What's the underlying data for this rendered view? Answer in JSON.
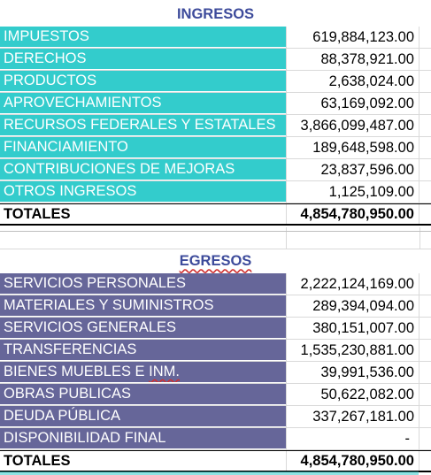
{
  "ingresos": {
    "title": "INGRESOS",
    "color": "#33cccc",
    "rows": [
      {
        "label": "IMPUESTOS",
        "value": "619,884,123.00"
      },
      {
        "label": "DERECHOS",
        "value": "88,378,921.00"
      },
      {
        "label": "PRODUCTOS",
        "value": "2,638,024.00"
      },
      {
        "label": "APROVECHAMIENTOS",
        "value": "63,169,092.00"
      },
      {
        "label": "RECURSOS FEDERALES Y ESTATALES",
        "value": "3,866,099,487.00"
      },
      {
        "label": "FINANCIAMIENTO",
        "value": "189,648,598.00"
      },
      {
        "label": "CONTRIBUCIONES DE MEJORAS",
        "value": "23,837,596.00"
      },
      {
        "label": "OTROS INGRESOS",
        "value": "1,125,109.00"
      }
    ],
    "total_label": "TOTALES",
    "total_value": "4,854,780,950.00"
  },
  "egresos": {
    "title": "EGRESOS",
    "color": "#666699",
    "rows": [
      {
        "label": "SERVICIOS PERSONALES",
        "value": "2,222,124,169.00"
      },
      {
        "label": "MATERIALES Y SUMINISTROS",
        "value": "289,394,094.00"
      },
      {
        "label": "SERVICIOS GENERALES",
        "value": "380,151,007.00"
      },
      {
        "label": "TRANSFERENCIAS",
        "value": "1,535,230,881.00"
      },
      {
        "label": "BIENES MUEBLES E ",
        "label_mark": "INM.",
        "value": "39,991,536.00"
      },
      {
        "label": "OBRAS PUBLICAS",
        "value": "50,622,082.00"
      },
      {
        "label": "DEUDA PÚBLICA",
        "value": "337,267,181.00"
      },
      {
        "label": "DISPONIBILIDAD FINAL",
        "value": "-"
      }
    ],
    "total_label": "TOTALES",
    "total_value": "4,854,780,950.00"
  }
}
